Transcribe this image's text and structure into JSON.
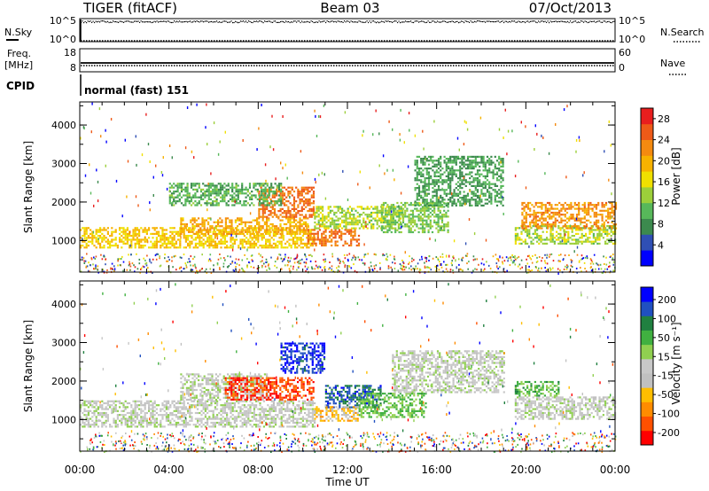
{
  "header": {
    "station": "TIGER (fitACF)",
    "beam": "Beam 03",
    "date": "07/Oct/2013"
  },
  "strip": {
    "nsky_label": "N.Sky",
    "nsky_tick_top": "10^5",
    "nsky_tick_bottom": "10^0",
    "nsearch_label": "N.Search",
    "nsearch_tick_top": "10^5",
    "nsearch_tick_bottom": "10^0",
    "freq_label": "Freq.",
    "freq_unit": "[MHz]",
    "freq_tick_top": "18",
    "freq_tick_bottom": "8",
    "nave_label": "Nave",
    "nave_tick_top": "60",
    "nave_tick_bottom": "0",
    "cpid_label": "CPID",
    "cpid_value": "normal (fast) 151"
  },
  "colors": {
    "power_scale": [
      "#0000ff",
      "#2f4fb4",
      "#3c8a4e",
      "#57b85a",
      "#9ccf3a",
      "#f0e000",
      "#f7b200",
      "#f48a10",
      "#ee5a18",
      "#e81e1e"
    ],
    "velocity_scale": [
      "#ff0000",
      "#ff5000",
      "#ff8c00",
      "#ffbe00",
      "#c0c0c0",
      "#c8c8c8",
      "#90d050",
      "#40b040",
      "#208040",
      "#2050c0",
      "#0000ff"
    ]
  },
  "chart_data": [
    {
      "type": "heatmap",
      "title": "",
      "xlabel": "",
      "ylabel": "Slant Range [km]",
      "xlim": [
        "00:00",
        "00:00"
      ],
      "ylim": [
        180,
        4600
      ],
      "x_ticks": [
        "00:00",
        "04:00",
        "08:00",
        "12:00",
        "16:00",
        "20:00",
        "00:00"
      ],
      "y_ticks": [
        "1000",
        "2000",
        "3000",
        "4000"
      ],
      "colorbar_label": "Power [dB]",
      "colorbar_ticks": [
        "4",
        "8",
        "12",
        "16",
        "20",
        "24",
        "28"
      ],
      "colorbar_range": [
        0,
        30
      ],
      "scatter_bands": [
        {
          "t0": 0.0,
          "t1": 10.5,
          "r0": 800,
          "r1": 1350,
          "v": 18
        },
        {
          "t0": 4.5,
          "t1": 10.2,
          "r0": 1150,
          "r1": 1600,
          "v": 20
        },
        {
          "t0": 8.0,
          "t1": 10.5,
          "r0": 1600,
          "r1": 2400,
          "v": 24
        },
        {
          "t0": 10.2,
          "t1": 12.5,
          "r0": 850,
          "r1": 1300,
          "v": 24
        },
        {
          "t0": 10.5,
          "t1": 14.5,
          "r0": 1300,
          "r1": 1900,
          "v": 14
        },
        {
          "t0": 13.5,
          "t1": 16.5,
          "r0": 1200,
          "r1": 2000,
          "v": 12
        },
        {
          "t0": 15.0,
          "t1": 19.0,
          "r0": 1900,
          "r1": 3200,
          "v": 9
        },
        {
          "t0": 19.5,
          "t1": 24.0,
          "r0": 900,
          "r1": 1400,
          "v": 14
        },
        {
          "t0": 19.8,
          "t1": 24.0,
          "r0": 1300,
          "r1": 2000,
          "v": 22
        },
        {
          "t0": 4.0,
          "t1": 9.0,
          "r0": 1900,
          "r1": 2500,
          "v": 10
        }
      ]
    },
    {
      "type": "heatmap",
      "title": "",
      "xlabel": "Time UT",
      "ylabel": "Slant Range [km]",
      "xlim": [
        "00:00",
        "00:00"
      ],
      "ylim": [
        180,
        4600
      ],
      "x_ticks": [
        "00:00",
        "04:00",
        "08:00",
        "12:00",
        "16:00",
        "20:00",
        "00:00"
      ],
      "y_ticks": [
        "1000",
        "2000",
        "3000",
        "4000"
      ],
      "colorbar_label": "Velocity [m s⁻¹]",
      "colorbar_ticks": [
        "200",
        "100",
        "50",
        "15",
        "-15",
        "-50",
        "-100",
        "-200"
      ],
      "colorbar_range": [
        -250,
        250
      ],
      "scatter_bands": [
        {
          "t0": 0.0,
          "t1": 10.5,
          "r0": 800,
          "r1": 1500,
          "v": 0
        },
        {
          "t0": 4.5,
          "t1": 8.5,
          "r0": 1500,
          "r1": 2200,
          "v": 0
        },
        {
          "t0": 6.5,
          "t1": 10.5,
          "r0": 1500,
          "r1": 2100,
          "v": -190
        },
        {
          "t0": 9.0,
          "t1": 11.0,
          "r0": 2200,
          "r1": 3000,
          "v": 200
        },
        {
          "t0": 11.0,
          "t1": 13.5,
          "r0": 1300,
          "r1": 1900,
          "v": 170
        },
        {
          "t0": 12.5,
          "t1": 15.5,
          "r0": 1050,
          "r1": 1700,
          "v": 70
        },
        {
          "t0": 10.5,
          "t1": 12.5,
          "r0": 950,
          "r1": 1350,
          "v": -80
        },
        {
          "t0": 14.0,
          "t1": 19.0,
          "r0": 1700,
          "r1": 2800,
          "v": 0
        },
        {
          "t0": 19.5,
          "t1": 24.0,
          "r0": 1000,
          "r1": 1600,
          "v": 0
        },
        {
          "t0": 19.5,
          "t1": 21.5,
          "r0": 1600,
          "r1": 2000,
          "v": 80
        }
      ]
    }
  ]
}
